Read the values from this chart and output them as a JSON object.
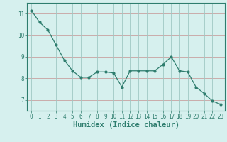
{
  "x": [
    0,
    1,
    2,
    3,
    4,
    5,
    6,
    7,
    8,
    9,
    10,
    11,
    12,
    13,
    14,
    15,
    16,
    17,
    18,
    19,
    20,
    21,
    22,
    23
  ],
  "y": [
    11.15,
    10.6,
    10.25,
    9.55,
    8.85,
    8.35,
    8.05,
    8.05,
    8.3,
    8.3,
    8.25,
    7.6,
    8.35,
    8.35,
    8.35,
    8.35,
    8.65,
    9.0,
    8.35,
    8.3,
    7.6,
    7.3,
    6.95,
    6.8
  ],
  "line_color": "#2e7d6e",
  "marker": "o",
  "marker_size": 2.0,
  "linewidth": 0.9,
  "background_color": "#d6f0ee",
  "grid_color_h": "#c8a0a0",
  "grid_color_v": "#a0c8c4",
  "xlabel": "Humidex (Indice chaleur)",
  "xlim": [
    -0.5,
    23.5
  ],
  "ylim": [
    6.5,
    11.5
  ],
  "yticks": [
    7,
    8,
    9,
    10,
    11
  ],
  "xticks": [
    0,
    1,
    2,
    3,
    4,
    5,
    6,
    7,
    8,
    9,
    10,
    11,
    12,
    13,
    14,
    15,
    16,
    17,
    18,
    19,
    20,
    21,
    22,
    23
  ],
  "tick_fontsize": 5.5,
  "xlabel_fontsize": 7.5,
  "spine_color": "#2e7d6e",
  "tick_color": "#2e7d6e"
}
